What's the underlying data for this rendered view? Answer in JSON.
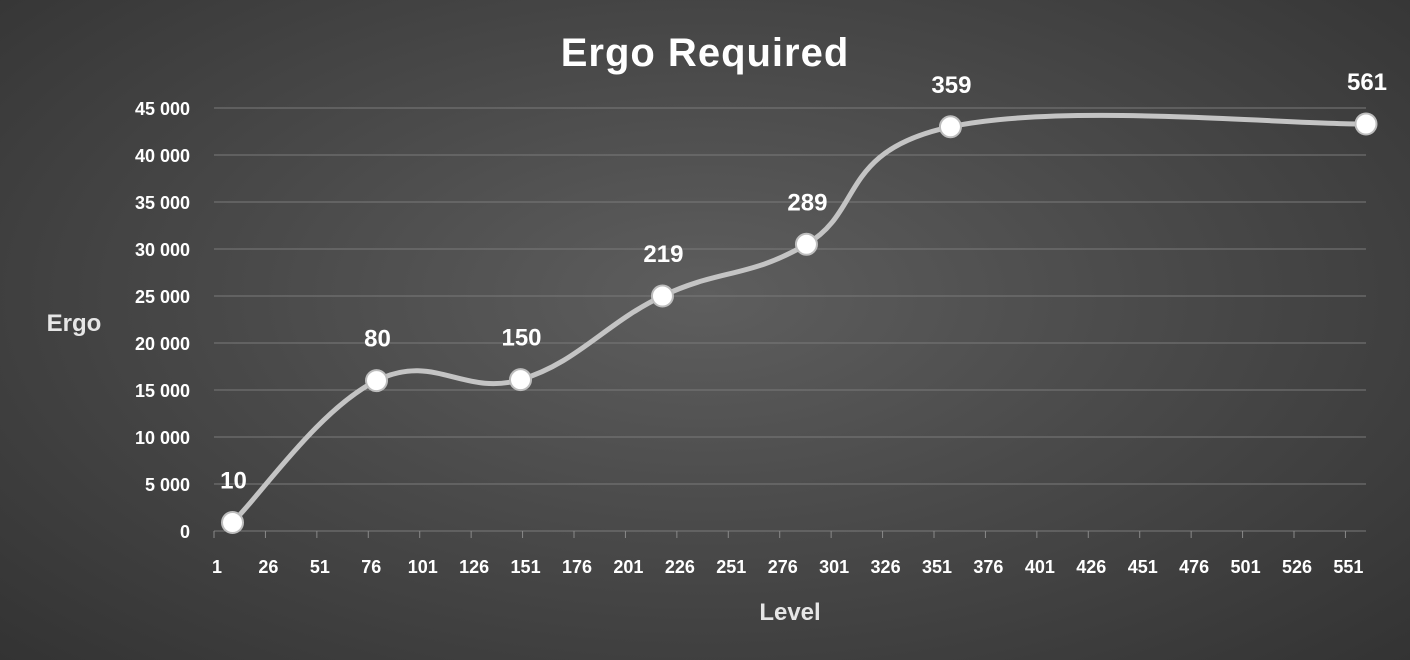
{
  "chart_data": {
    "type": "line",
    "title": "Ergo Required",
    "xlabel": "Level",
    "ylabel": "Ergo",
    "ylim": [
      0,
      45000
    ],
    "yticks": [
      0,
      5000,
      10000,
      15000,
      20000,
      25000,
      30000,
      35000,
      40000,
      45000
    ],
    "ytick_labels": [
      "0",
      "5 000",
      "10 000",
      "15 000",
      "20 000",
      "25 000",
      "30 000",
      "35 000",
      "40 000",
      "45 000"
    ],
    "x_categories": [
      "1",
      "26",
      "51",
      "76",
      "101",
      "126",
      "151",
      "176",
      "201",
      "226",
      "251",
      "276",
      "301",
      "326",
      "351",
      "376",
      "401",
      "426",
      "451",
      "476",
      "501",
      "526",
      "551"
    ],
    "xlim": [
      1,
      561
    ],
    "grid": true,
    "smooth": true,
    "series": [
      {
        "color": "#c4c4c4",
        "points": [
          {
            "x": 10,
            "y": 900,
            "label": "10"
          },
          {
            "x": 80,
            "y": 16000,
            "label": "80"
          },
          {
            "x": 150,
            "y": 16100,
            "label": "150"
          },
          {
            "x": 219,
            "y": 25000,
            "label": "219"
          },
          {
            "x": 289,
            "y": 30500,
            "label": "289"
          },
          {
            "x": 359,
            "y": 43000,
            "label": "359"
          },
          {
            "x": 561,
            "y": 43300,
            "label": "561"
          }
        ]
      }
    ]
  }
}
